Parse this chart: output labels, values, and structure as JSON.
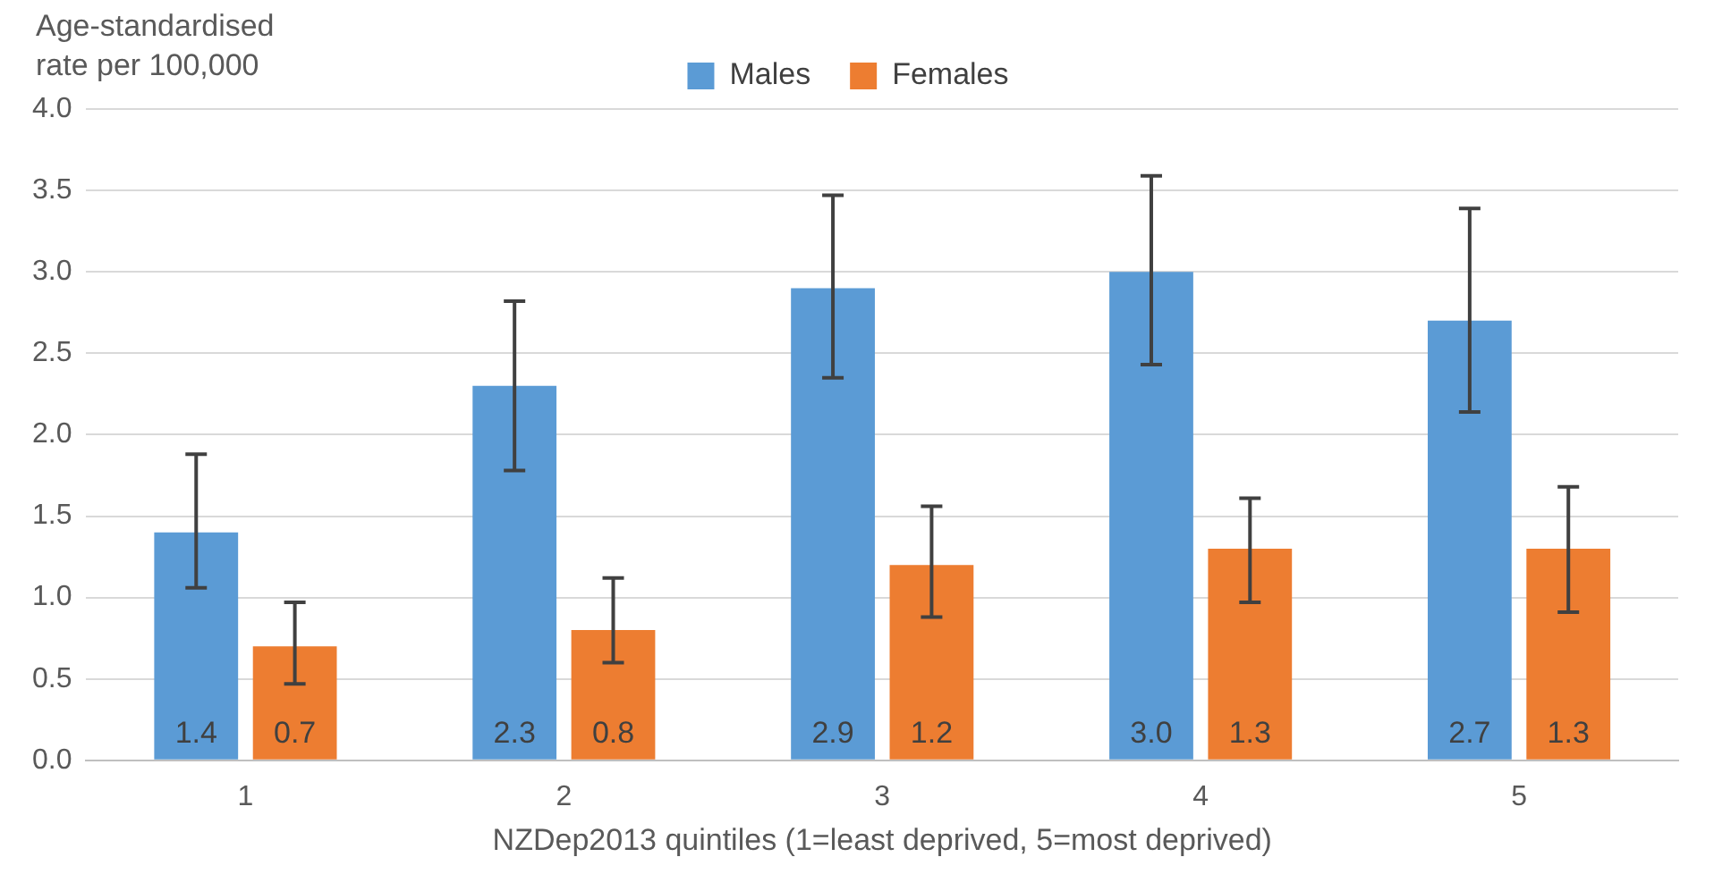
{
  "chart_data": {
    "type": "bar",
    "ylabel": "Age-standardised rate per 100,000",
    "xlabel": "NZDep2013 quintiles (1=least deprived, 5=most deprived)",
    "categories": [
      "1",
      "2",
      "3",
      "4",
      "5"
    ],
    "series": [
      {
        "name": "Males",
        "color": "#5b9bd5",
        "values": [
          1.4,
          2.3,
          2.9,
          3.0,
          2.7
        ],
        "value_labels": [
          "1.4",
          "2.3",
          "2.9",
          "3.0",
          "2.7"
        ],
        "errors": [
          [
            1.06,
            1.88
          ],
          [
            1.78,
            2.82
          ],
          [
            2.35,
            3.47
          ],
          [
            2.43,
            3.59
          ],
          [
            2.14,
            3.39
          ]
        ]
      },
      {
        "name": "Females",
        "color": "#ed7d31",
        "values": [
          0.7,
          0.8,
          1.2,
          1.3,
          1.3
        ],
        "value_labels": [
          "0.7",
          "0.8",
          "1.2",
          "1.3",
          "1.3"
        ],
        "errors": [
          [
            0.47,
            0.97
          ],
          [
            0.6,
            1.12
          ],
          [
            0.88,
            1.56
          ],
          [
            0.97,
            1.61
          ],
          [
            0.91,
            1.68
          ]
        ]
      }
    ],
    "ylim": [
      0,
      4
    ],
    "yticks": [
      {
        "value": 0,
        "label": "0.0"
      },
      0.5,
      {
        "value": 1,
        "label": "1.0"
      },
      1.5,
      {
        "value": 2,
        "label": "2.0"
      },
      2.5,
      {
        "value": 3,
        "label": "3.0"
      },
      3.5,
      {
        "value": 4,
        "label": "4.0"
      }
    ],
    "grid": "y",
    "legend": "top"
  }
}
